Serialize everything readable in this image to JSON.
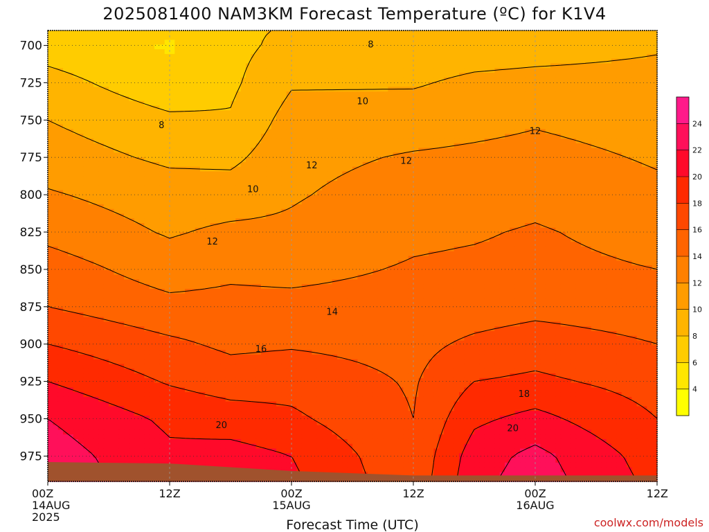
{
  "chart_data": {
    "type": "heatmap",
    "title": "2025081400 NAM3KM Forecast Temperature (ºC) for K1V4",
    "xlabel": "Forecast Time (UTC)",
    "ylabel": "",
    "credit": "coolwx.com/models",
    "x_ticks": [
      {
        "hours": 0,
        "lines": [
          "00Z",
          "14AUG",
          "2025"
        ]
      },
      {
        "hours": 12,
        "lines": [
          "12Z"
        ]
      },
      {
        "hours": 24,
        "lines": [
          "00Z",
          "15AUG"
        ]
      },
      {
        "hours": 36,
        "lines": [
          "12Z"
        ]
      },
      {
        "hours": 48,
        "lines": [
          "00Z",
          "16AUG"
        ]
      },
      {
        "hours": 60,
        "lines": [
          "12Z"
        ]
      }
    ],
    "xlim_hours": [
      0,
      60
    ],
    "y_axis": "pressure (hPa), inverted",
    "y_ticks": [
      700,
      725,
      750,
      775,
      800,
      825,
      850,
      875,
      900,
      925,
      950,
      975
    ],
    "ylim_hpa": [
      690,
      992
    ],
    "grid": true,
    "colorbar": {
      "ticks": [
        4,
        6,
        8,
        10,
        12,
        14,
        16,
        18,
        20,
        22,
        24
      ],
      "range": [
        2,
        26
      ],
      "colors": [
        "#ffff00",
        "#ffe600",
        "#ffcc00",
        "#ffb400",
        "#ff9c00",
        "#ff8000",
        "#ff6400",
        "#ff4800",
        "#ff2a00",
        "#ff0a2a",
        "#ff105a",
        "#ff1a8a"
      ]
    },
    "terrain_color": "#a0522d",
    "contour_levels": [
      8,
      10,
      12,
      14,
      16,
      18,
      20,
      22
    ],
    "contour_labels": [
      {
        "text": "8",
        "hours": 31.8,
        "hpa": 699
      },
      {
        "text": "8",
        "hours": 11.2,
        "hpa": 753
      },
      {
        "text": "10",
        "hours": 31.0,
        "hpa": 737
      },
      {
        "text": "10",
        "hours": 20.2,
        "hpa": 796
      },
      {
        "text": "12",
        "hours": 26.0,
        "hpa": 780
      },
      {
        "text": "12",
        "hours": 35.3,
        "hpa": 777
      },
      {
        "text": "12",
        "hours": 48.0,
        "hpa": 757
      },
      {
        "text": "12",
        "hours": 16.2,
        "hpa": 831
      },
      {
        "text": "14",
        "hours": 28.0,
        "hpa": 878
      },
      {
        "text": "16",
        "hours": 21.0,
        "hpa": 903
      },
      {
        "text": "18",
        "hours": 46.9,
        "hpa": 933
      },
      {
        "text": "20",
        "hours": 17.1,
        "hpa": 954
      },
      {
        "text": "20",
        "hours": 45.8,
        "hpa": 956
      }
    ],
    "temperature_profiles": [
      {
        "hours": 0,
        "hpa": [
          690,
          700,
          725,
          750,
          775,
          800,
          825,
          850,
          875,
          900,
          925,
          950,
          975,
          992
        ],
        "temp": [
          7.4,
          7.0,
          8.8,
          10.0,
          11.0,
          12.2,
          13.4,
          15.0,
          16.0,
          18.0,
          20.0,
          22.0,
          23.0,
          23.4
        ]
      },
      {
        "hours": 12,
        "hpa": [
          690,
          700,
          725,
          750,
          775,
          800,
          825,
          850,
          875,
          900,
          925,
          950,
          975,
          992
        ],
        "temp": [
          6.4,
          5.8,
          6.6,
          8.4,
          9.6,
          11.0,
          11.8,
          13.0,
          14.6,
          16.4,
          17.8,
          19.6,
          20.4,
          20.6
        ]
      },
      {
        "hours": 18,
        "hpa": [
          690,
          700,
          725,
          750,
          775,
          800,
          825,
          850,
          875,
          900,
          925,
          950,
          975,
          992
        ],
        "temp": [
          7.6,
          7.4,
          7.6,
          8.2,
          9.5,
          11.0,
          12.4,
          13.6,
          14.6,
          15.6,
          17.0,
          19.0,
          20.8,
          21.2
        ]
      },
      {
        "hours": 24,
        "hpa": [
          690,
          700,
          725,
          750,
          775,
          800,
          825,
          850,
          875,
          900,
          925,
          950,
          975,
          992
        ],
        "temp": [
          8.2,
          8.6,
          9.8,
          10.8,
          11.4,
          11.8,
          12.4,
          13.4,
          14.6,
          15.8,
          17.2,
          18.4,
          20.0,
          20.4
        ]
      },
      {
        "hours": 36,
        "hpa": [
          690,
          700,
          725,
          750,
          775,
          800,
          825,
          850,
          875,
          900,
          925,
          950,
          975,
          992
        ],
        "temp": [
          8.2,
          8.8,
          9.8,
          11.0,
          12.2,
          13.0,
          13.6,
          14.2,
          14.8,
          15.4,
          15.8,
          16.0,
          16.4,
          16.6
        ]
      },
      {
        "hours": 42,
        "hpa": [
          690,
          700,
          725,
          750,
          775,
          800,
          825,
          850,
          875,
          900,
          925,
          950,
          975,
          992
        ],
        "temp": [
          8.4,
          9.0,
          10.4,
          11.4,
          12.4,
          13.0,
          13.8,
          14.4,
          15.0,
          16.4,
          18.0,
          19.6,
          21.0,
          21.4
        ]
      },
      {
        "hours": 48,
        "hpa": [
          690,
          700,
          725,
          750,
          775,
          800,
          825,
          850,
          875,
          900,
          925,
          950,
          975,
          992
        ],
        "temp": [
          8.6,
          9.2,
          10.6,
          11.8,
          12.6,
          13.4,
          14.2,
          14.6,
          15.4,
          17.0,
          18.4,
          20.6,
          22.6,
          23.0
        ]
      },
      {
        "hours": 60,
        "hpa": [
          690,
          700,
          725,
          750,
          775,
          800,
          825,
          850,
          875,
          900,
          925,
          950,
          975,
          992
        ],
        "temp": [
          9.4,
          9.8,
          10.6,
          11.2,
          11.8,
          12.4,
          13.2,
          14.0,
          15.0,
          16.0,
          17.2,
          18.0,
          19.0,
          19.4
        ]
      }
    ],
    "surface_pressure": {
      "hours": [
        0,
        12,
        24,
        36,
        48,
        60
      ],
      "hpa": [
        979,
        980,
        985,
        988,
        988,
        988
      ]
    }
  }
}
